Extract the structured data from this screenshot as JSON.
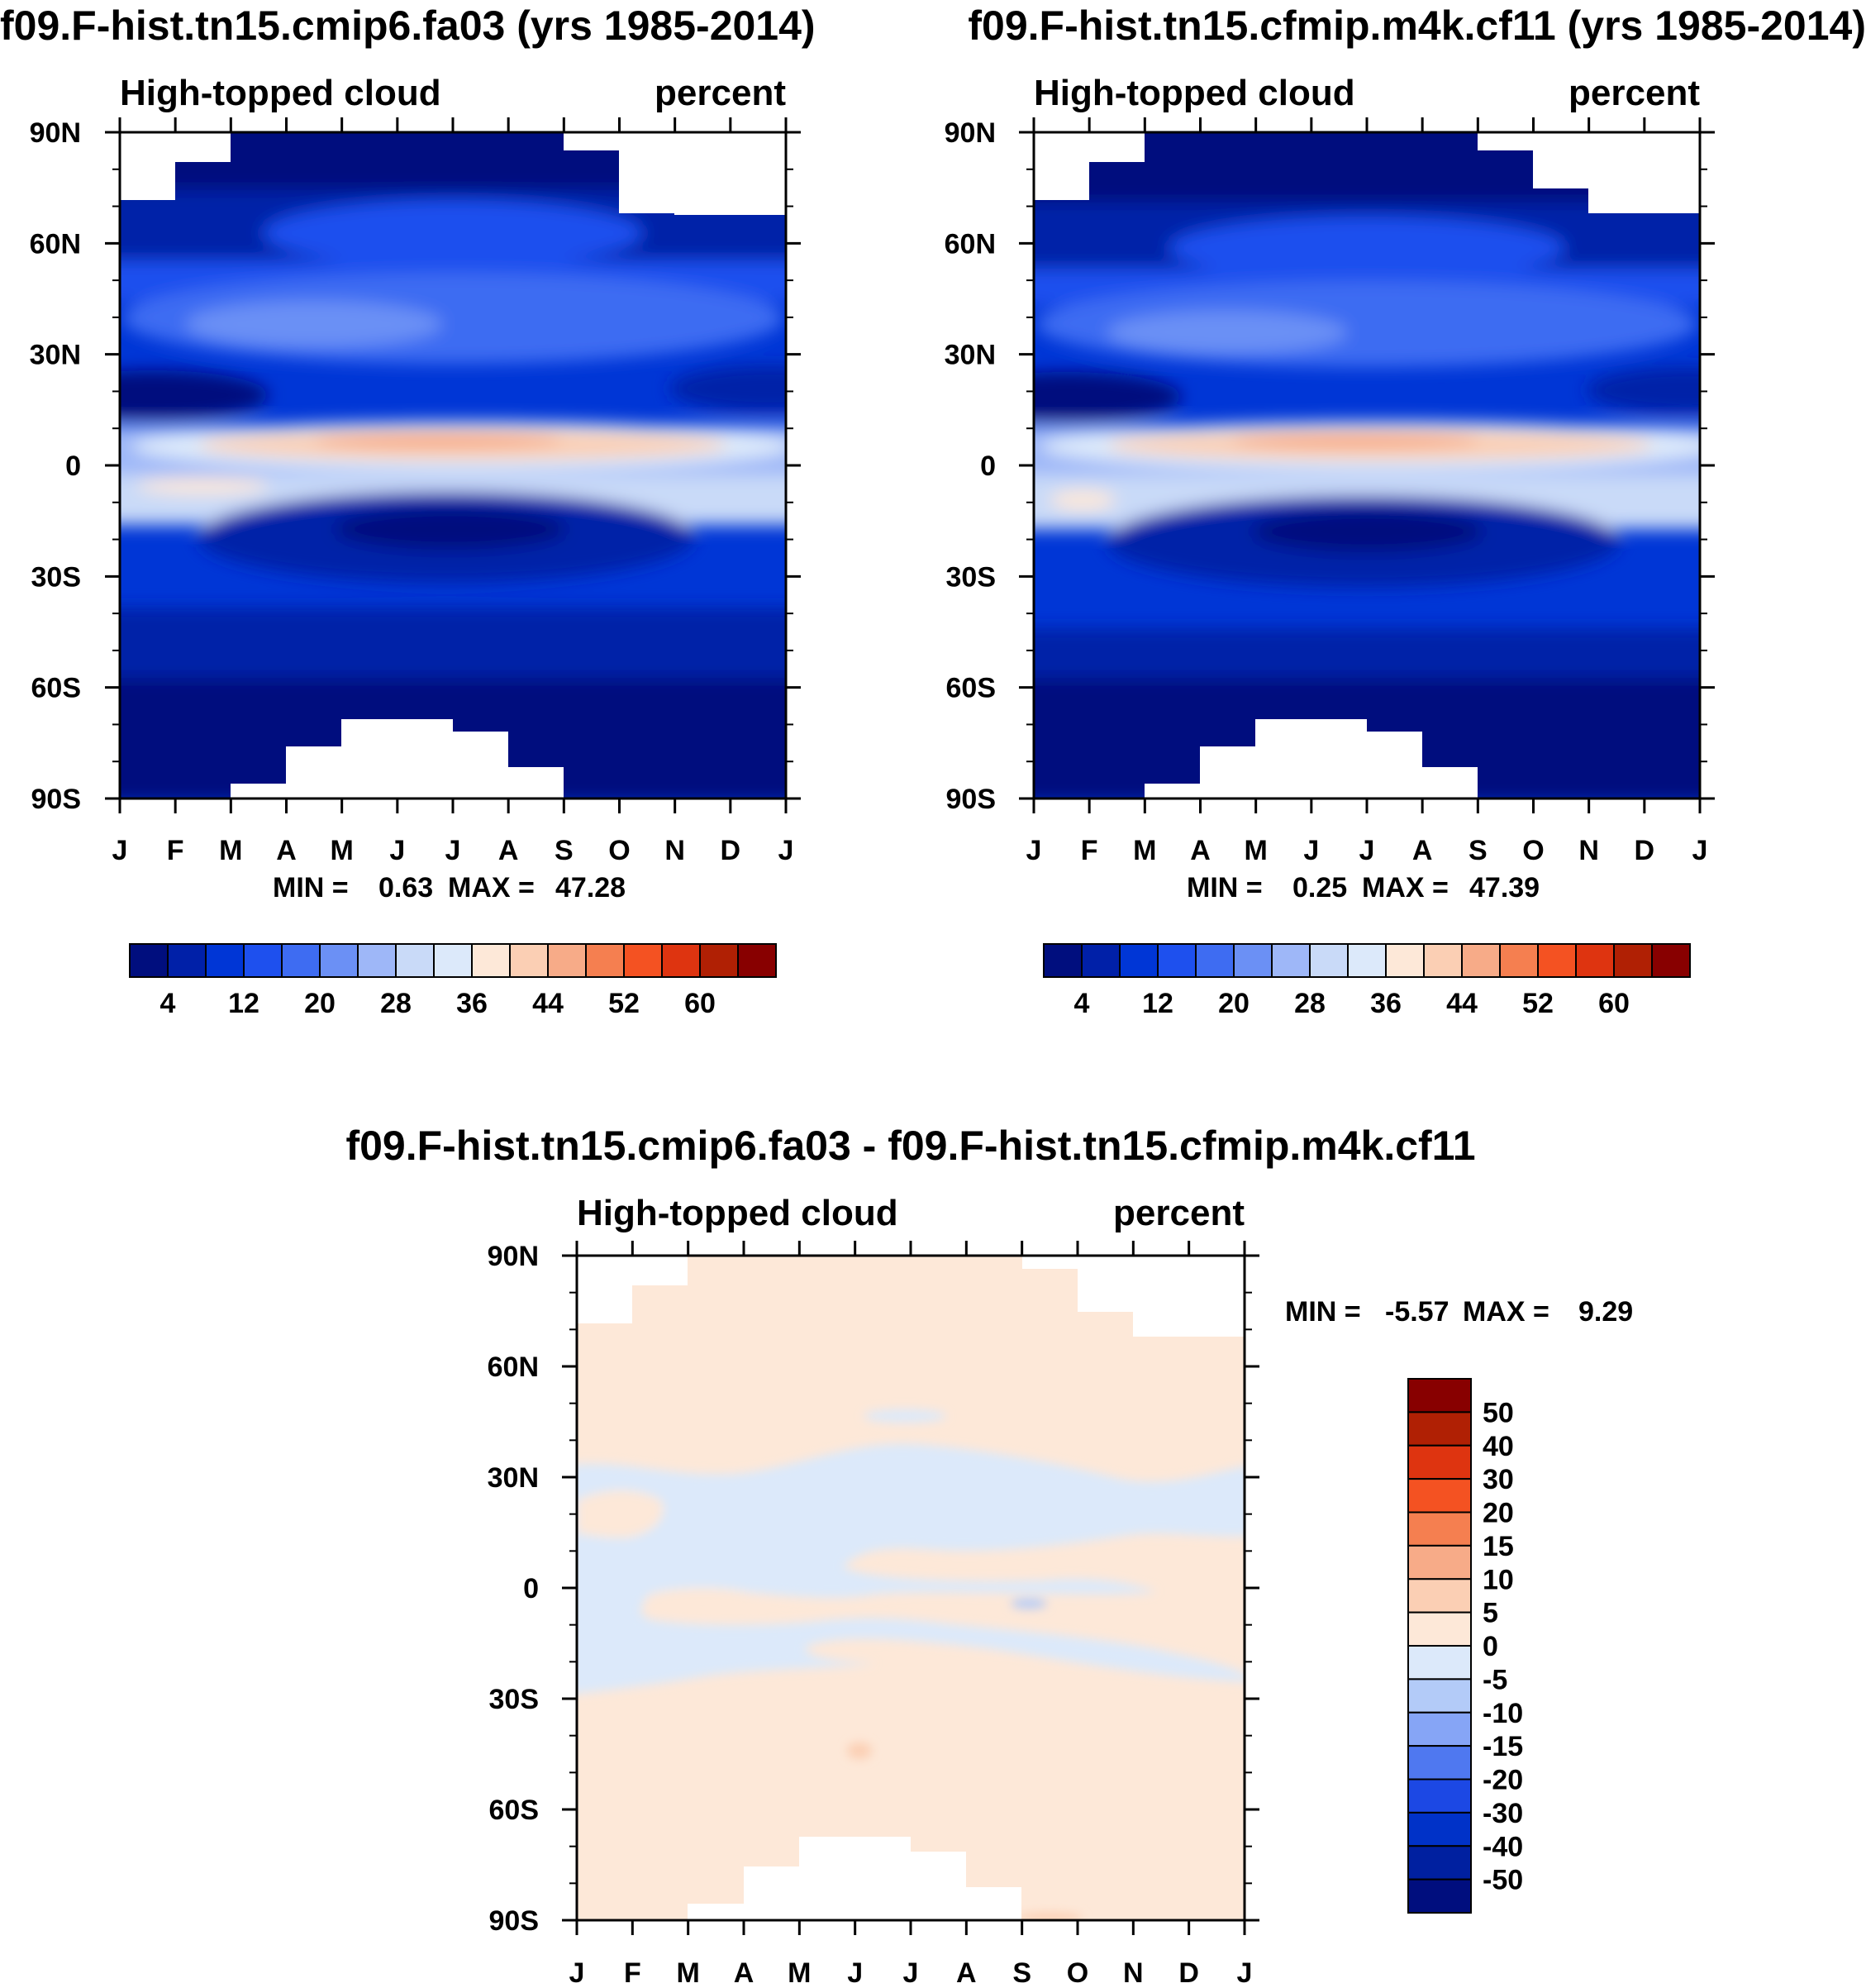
{
  "chart_data": [
    {
      "type": "heatmap",
      "id": "panel1",
      "title": "f09.F-hist.tn15.cmip6.fa03 (yrs 1985-2014)",
      "left_label": "High-topped cloud",
      "right_label": "percent",
      "x_ticks": [
        "J",
        "F",
        "M",
        "A",
        "M",
        "J",
        "J",
        "A",
        "S",
        "O",
        "N",
        "D",
        "J"
      ],
      "y_ticks": [
        "90N",
        "60N",
        "30N",
        "0",
        "30S",
        "60S",
        "90S"
      ],
      "ylim": [
        -90,
        90
      ],
      "stats": {
        "min_label": "MIN =",
        "min": "0.63",
        "max_label": "MAX =",
        "max": "47.28"
      },
      "colorbar_orientation": "horizontal",
      "colorbar_ticks": [
        "4",
        "12",
        "20",
        "28",
        "36",
        "44",
        "52",
        "60"
      ],
      "levels": [
        0,
        4,
        8,
        12,
        16,
        20,
        24,
        28,
        32,
        36,
        40,
        44,
        48,
        52,
        56,
        60,
        64
      ]
    },
    {
      "type": "heatmap",
      "id": "panel2",
      "title": "f09.F-hist.tn15.cfmip.m4k.cf11 (yrs 1985-2014)",
      "left_label": "High-topped cloud",
      "right_label": "percent",
      "x_ticks": [
        "J",
        "F",
        "M",
        "A",
        "M",
        "J",
        "J",
        "A",
        "S",
        "O",
        "N",
        "D",
        "J"
      ],
      "y_ticks": [
        "90N",
        "60N",
        "30N",
        "0",
        "30S",
        "60S",
        "90S"
      ],
      "ylim": [
        -90,
        90
      ],
      "stats": {
        "min_label": "MIN =",
        "min": "0.25",
        "max_label": "MAX =",
        "max": "47.39"
      },
      "colorbar_orientation": "horizontal",
      "colorbar_ticks": [
        "4",
        "12",
        "20",
        "28",
        "36",
        "44",
        "52",
        "60"
      ],
      "levels": [
        0,
        4,
        8,
        12,
        16,
        20,
        24,
        28,
        32,
        36,
        40,
        44,
        48,
        52,
        56,
        60,
        64
      ]
    },
    {
      "type": "heatmap",
      "id": "panel3",
      "title": "f09.F-hist.tn15.cmip6.fa03 - f09.F-hist.tn15.cfmip.m4k.cf11",
      "left_label": "High-topped cloud",
      "right_label": "percent",
      "x_ticks": [
        "J",
        "F",
        "M",
        "A",
        "M",
        "J",
        "J",
        "A",
        "S",
        "O",
        "N",
        "D",
        "J"
      ],
      "y_ticks": [
        "90N",
        "60N",
        "30N",
        "0",
        "30S",
        "60S",
        "90S"
      ],
      "ylim": [
        -90,
        90
      ],
      "stats": {
        "min_label": "MIN =",
        "min": "-5.57",
        "max_label": "MAX =",
        "max": "9.29"
      },
      "colorbar_orientation": "vertical",
      "colorbar_ticks": [
        "50",
        "40",
        "30",
        "20",
        "15",
        "10",
        "5",
        "0",
        "-5",
        "-10",
        "-15",
        "-20",
        "-30",
        "-40",
        "-50"
      ]
    }
  ],
  "palettes": {
    "abs": [
      "#000e7e",
      "#0020a8",
      "#0036d6",
      "#1e50ee",
      "#3e6cf2",
      "#6b90f5",
      "#9eb7f8",
      "#c9daf8",
      "#dce9fa",
      "#fde8d8",
      "#fbcfb4",
      "#f7ab88",
      "#f57f50",
      "#f45222",
      "#de3410",
      "#b02004",
      "#880000"
    ],
    "diff": [
      "#880000",
      "#b02004",
      "#de3410",
      "#f45222",
      "#f57f50",
      "#f7ab88",
      "#fbcfb4",
      "#fde8d8",
      "#dce9fa",
      "#b3cbf8",
      "#86a5f6",
      "#4f78f0",
      "#1c48e4",
      "#0032c8",
      "#0020a0",
      "#000e7e"
    ]
  }
}
